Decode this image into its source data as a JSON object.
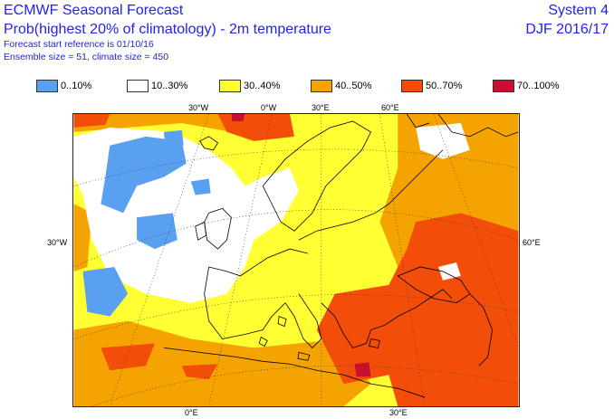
{
  "header": {
    "title": "ECMWF Seasonal Forecast",
    "subtitle": "Prob(highest 20% of climatology) - 2m temperature",
    "forecast_ref": "Forecast start reference is 01/10/16",
    "ensemble": "Ensemble size = 51, climate size = 450",
    "system": "System 4",
    "season": "DJF 2016/17"
  },
  "legend": [
    {
      "label": "0..10%",
      "color": "#5aa0f0"
    },
    {
      "label": "10..30%",
      "color": "#ffffff"
    },
    {
      "label": "30..40%",
      "color": "#ffff33"
    },
    {
      "label": "40..50%",
      "color": "#f5a300"
    },
    {
      "label": "50..70%",
      "color": "#f24e0a"
    },
    {
      "label": "70..100%",
      "color": "#c8102e"
    }
  ],
  "axis_labels": {
    "top": [
      "30°W",
      "0°W",
      "30°E",
      "60°E"
    ],
    "left": [
      "30°W"
    ],
    "right": [
      "60°E"
    ],
    "bottom": [
      "0°E",
      "30°E"
    ]
  }
}
